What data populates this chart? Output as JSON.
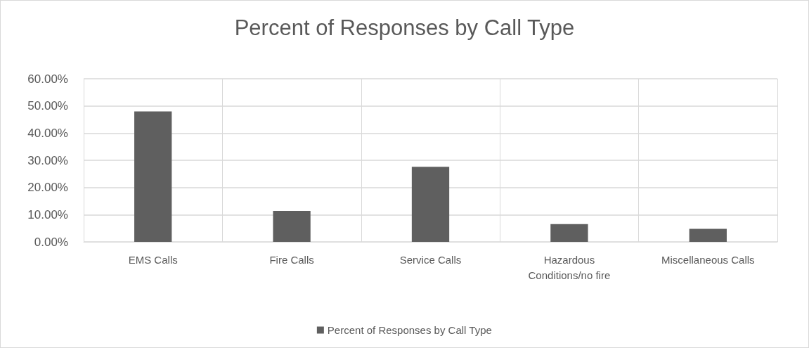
{
  "chart_data": {
    "type": "bar",
    "title": "Percent of Responses by Call Type",
    "categories": [
      "EMS Calls",
      "Fire Calls",
      "Service Calls",
      "Hazardous\nConditions/no fire",
      "Miscellaneous Calls"
    ],
    "series": [
      {
        "name": "Percent of Responses by Call Type",
        "color": "#5f5f5f",
        "values": [
          48.0,
          11.4,
          27.6,
          6.5,
          4.8
        ]
      }
    ],
    "ylim": [
      0,
      60
    ],
    "yticks": [
      {
        "value": 0,
        "label": "0.00%"
      },
      {
        "value": 10,
        "label": "10.00%"
      },
      {
        "value": 20,
        "label": "20.00%"
      },
      {
        "value": 30,
        "label": "30.00%"
      },
      {
        "value": 40,
        "label": "40.00%"
      },
      {
        "value": 50,
        "label": "50.00%"
      },
      {
        "value": 60,
        "label": "60.00%"
      }
    ],
    "grid": true,
    "legend": "bottom"
  }
}
